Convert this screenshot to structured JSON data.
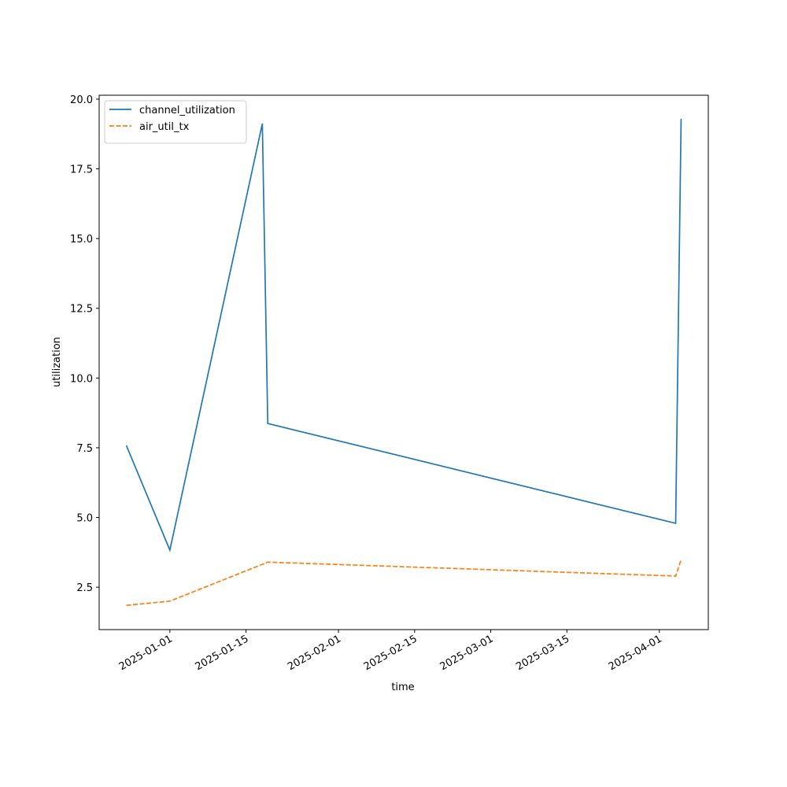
{
  "chart_data": {
    "type": "line",
    "x_label": "time",
    "y_label": "utilization",
    "x": [
      "2024-12-24",
      "2025-01-01",
      "2025-01-18",
      "2025-01-19",
      "2025-04-04",
      "2025-04-05"
    ],
    "series": [
      {
        "name": "channel_utilization",
        "color": "#1f77b4",
        "linestyle": "solid",
        "values": [
          7.58,
          3.83,
          19.12,
          8.37,
          4.79,
          19.29
        ]
      },
      {
        "name": "air_util_tx",
        "color": "#ff7f0e",
        "linestyle": "dashed",
        "values": [
          1.85,
          2.0,
          3.32,
          3.4,
          2.9,
          3.49
        ]
      }
    ],
    "xlim": [
      "2024-12-19",
      "2025-04-10"
    ],
    "xticks": [
      "2025-01-01",
      "2025-01-15",
      "2025-02-01",
      "2025-02-15",
      "2025-03-01",
      "2025-03-15",
      "2025-04-01"
    ],
    "ylim": [
      0.98,
      20.14
    ],
    "yticks": [
      2.5,
      {
        "value": 5,
        "label": "5.0"
      },
      7.5,
      {
        "value": 10,
        "label": "10.0"
      },
      12.5,
      {
        "value": 15,
        "label": "15.0"
      },
      17.5,
      {
        "value": 20,
        "label": "20.0"
      }
    ],
    "legend": "upper left",
    "grid": false
  }
}
